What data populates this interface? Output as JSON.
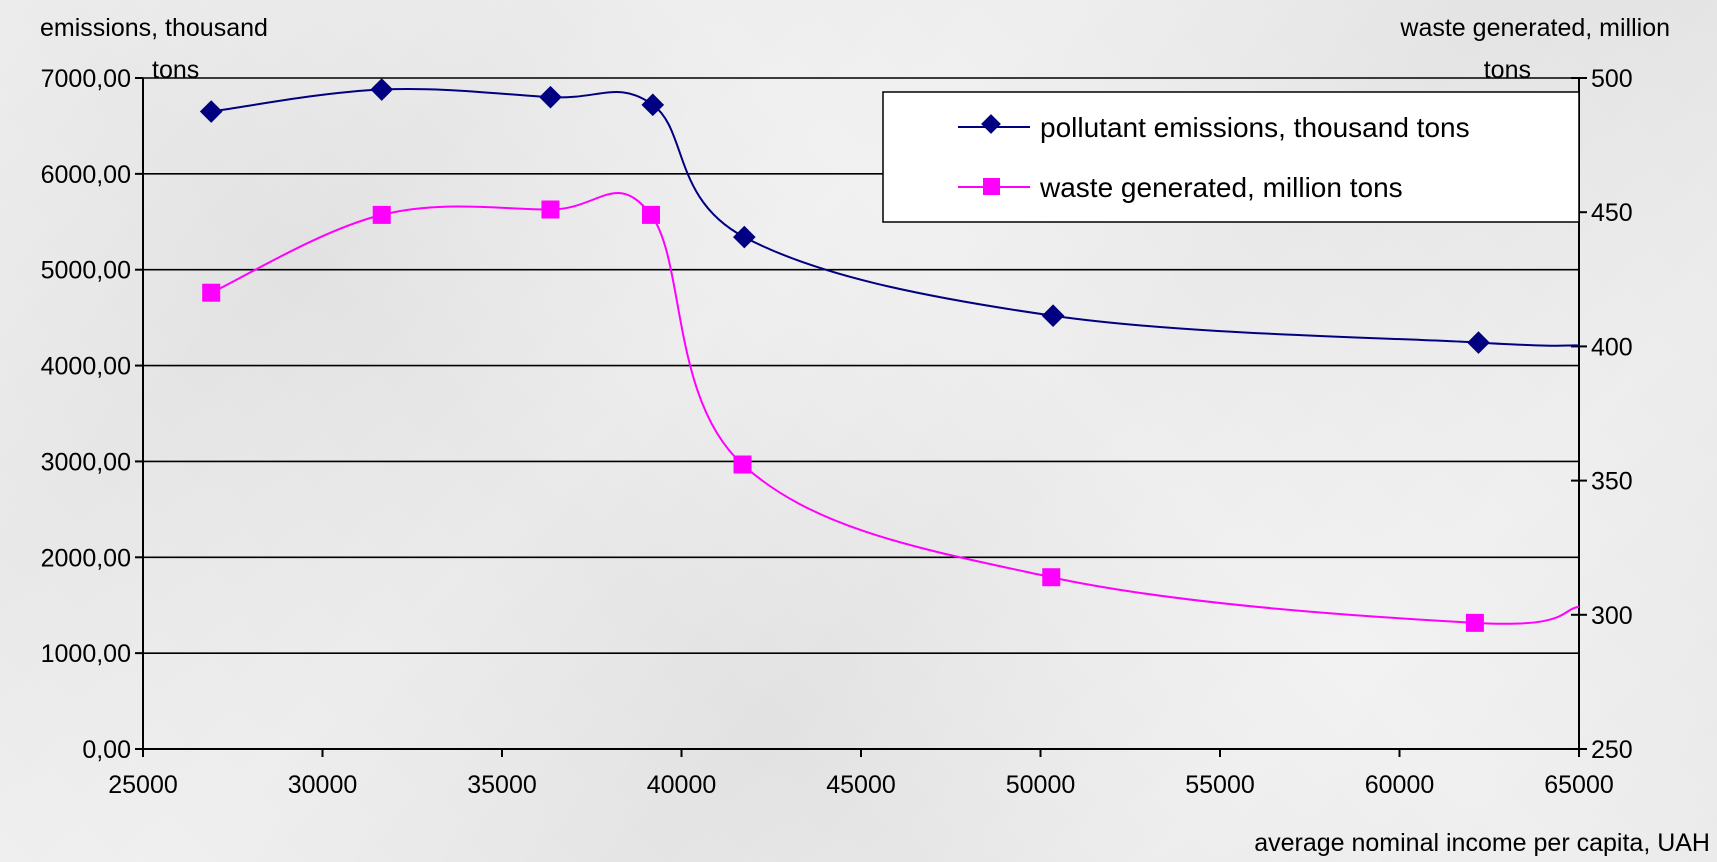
{
  "chart_data": {
    "type": "line",
    "title": "",
    "xlabel": "average nominal income per capita, UAH",
    "ylabel": "emissions, thousand tons",
    "y2label": "waste generated, million tons",
    "xlim": [
      25000,
      65000
    ],
    "ylim": [
      0,
      7000
    ],
    "y2lim": [
      250,
      500
    ],
    "x_ticks": [
      "25000",
      "30000",
      "35000",
      "40000",
      "45000",
      "50000",
      "55000",
      "60000",
      "65000"
    ],
    "y_ticks": [
      "0,00",
      "1000,00",
      "2000,00",
      "3000,00",
      "4000,00",
      "5000,00",
      "6000,00",
      "7000,00"
    ],
    "y2_ticks": [
      "250",
      "300",
      "350",
      "400",
      "450",
      "500"
    ],
    "grid": true,
    "legend_position": "top-right",
    "series": [
      {
        "name": "pollutant emissions, thousand tons",
        "axis": "left",
        "color": "#000080",
        "marker": "diamond",
        "x": [
          26900,
          31650,
          36350,
          39200,
          41750,
          50350,
          62200,
          65000
        ],
        "values": [
          6650,
          6880,
          6800,
          6720,
          5340,
          4520,
          4240,
          4210
        ],
        "marked": [
          true,
          true,
          true,
          true,
          true,
          true,
          true,
          false
        ]
      },
      {
        "name": "waste generated, million tons",
        "axis": "right",
        "color": "#ff00ff",
        "marker": "square",
        "x": [
          26900,
          31650,
          36350,
          39150,
          41700,
          50300,
          62100,
          65000
        ],
        "values": [
          420,
          449,
          451,
          449,
          356,
          314,
          297,
          303
        ],
        "marked": [
          true,
          true,
          true,
          true,
          true,
          true,
          true,
          false
        ]
      }
    ]
  }
}
